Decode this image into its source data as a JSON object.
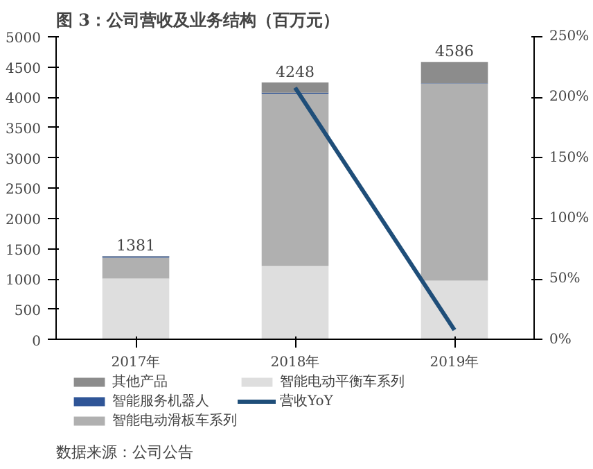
{
  "chart_data": {
    "type": "bar",
    "title": "图 3：公司营收及业务结构（百万元）",
    "annotations": [
      "数据来源：公司公告"
    ],
    "categories": [
      "2017年",
      "2018年",
      "2019年"
    ],
    "stacked": true,
    "series": [
      {
        "name": "智能电动平衡车系列",
        "color": "#dedede",
        "values": [
          1010,
          1218,
          975
        ]
      },
      {
        "name": "智能电动滑板车系列",
        "color": "#b0b0b0",
        "values": [
          345,
          2843,
          3249
        ]
      },
      {
        "name": "智能服务机器人",
        "color": "#2f5597",
        "values": [
          20,
          15,
          5
        ]
      },
      {
        "name": "其他产品",
        "color": "#8c8c8c",
        "values": [
          6,
          172,
          357
        ]
      },
      {
        "name": "营收YoY",
        "type": "line",
        "axis": "y2",
        "color": "#1f4e79",
        "values": [
          null,
          208,
          8
        ]
      }
    ],
    "totals": [
      "1381",
      "4248",
      "4586"
    ],
    "ylim": [
      0,
      5000
    ],
    "yticks": [
      0,
      500,
      1000,
      1500,
      2000,
      2500,
      3000,
      3500,
      4000,
      4500,
      5000
    ],
    "y2lim": [
      0,
      250
    ],
    "y2ticks": [
      {
        "value": 0,
        "label": "0%"
      },
      {
        "value": 50,
        "label": "50%"
      },
      {
        "value": 100,
        "label": "100%"
      },
      {
        "value": 150,
        "label": "150%"
      },
      {
        "value": 200,
        "label": "200%"
      },
      {
        "value": 250,
        "label": "250%"
      }
    ],
    "grid": false,
    "legend": "bottom"
  }
}
